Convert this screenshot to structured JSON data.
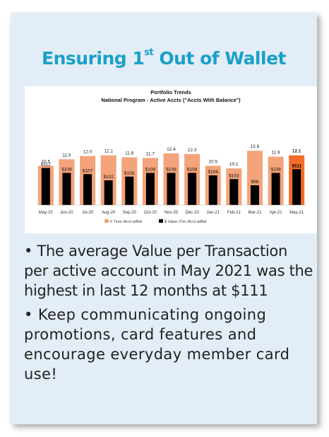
{
  "slide": {
    "title_main": "Ensuring 1",
    "title_sup": "st",
    "title_end": " Out of Wallet"
  },
  "bullets": [
    "• The average Value per Transaction per active account in May 2021 was the highest in last 12 months at $111",
    "• Keep communicating ongoing promotions, card features and encourage everyday member card use!"
  ],
  "colors": {
    "bar_orange": "#f4a37a",
    "bar_orange_highlight": "#f26d2a",
    "bar_black": "#000000",
    "title_blue": "#1aa0c8"
  },
  "chart_data": {
    "type": "bar",
    "title": "Portfolio Trends",
    "subtitle": "National Program - Active Accts (\"Accts With Balance\")",
    "categories": [
      "May-20",
      "Jun-20",
      "Jul-20",
      "Aug-20",
      "Sep-20",
      "Oct-20",
      "Nov-20",
      "Dec-20",
      "Jan-21",
      "Feb-21",
      "Mar-21",
      "Apr-21",
      "May-21"
    ],
    "series": [
      {
        "name": "# Txns /Acct w/Bal",
        "values": [
          10.5,
          11.5,
          12.0,
          12.1,
          11.8,
          11.7,
          12.4,
          12.3,
          10.5,
          10.1,
          12.8,
          11.9,
          12.1
        ],
        "labels": [
          "10.5",
          "11.5",
          "12.0",
          "12.1",
          "11.8",
          "11.7",
          "12.4",
          "12.3",
          "10.5",
          "10.1",
          "12.8",
          "11.9",
          "12.1"
        ]
      },
      {
        "name": "$ Value /Txn /Acct w/Bal",
        "values": [
          112,
          108,
          107,
          102,
          105,
          108,
          108,
          108,
          106,
          103,
          98,
          108,
          111
        ],
        "labels": [
          "$112",
          "$108",
          "$107",
          "$102",
          "$105",
          "$108",
          "$108",
          "$108",
          "$106",
          "$103",
          "$98",
          "$108",
          "$111"
        ]
      }
    ],
    "highlight_index": 12,
    "grid": false,
    "legend_position": "bottom"
  }
}
